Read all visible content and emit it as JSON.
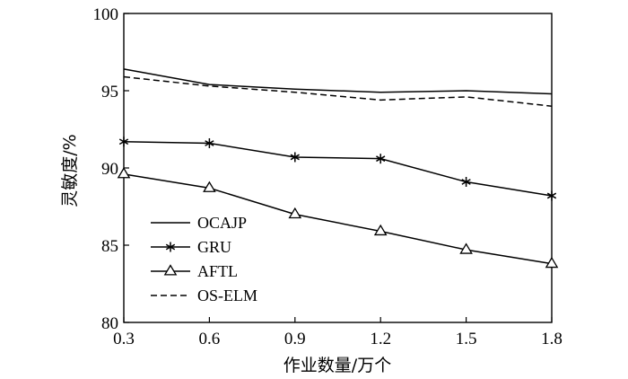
{
  "chart_data": {
    "type": "line",
    "title": "",
    "xlabel": "作业数量/万个",
    "ylabel": "灵敏度/%",
    "x": [
      0.3,
      0.6,
      0.9,
      1.2,
      1.5,
      1.8
    ],
    "xticks": [
      "0.3",
      "0.6",
      "0.9",
      "1.2",
      "1.5",
      "1.8"
    ],
    "yticks": [
      "80",
      "85",
      "90",
      "95",
      "100"
    ],
    "xlim": [
      0.3,
      1.8
    ],
    "ylim": [
      80,
      100
    ],
    "grid": false,
    "legend_position": "lower-left",
    "series": [
      {
        "name": "OCAJP",
        "values": [
          96.4,
          95.4,
          95.1,
          94.9,
          95.0,
          94.8
        ],
        "line": "solid",
        "marker": "none"
      },
      {
        "name": "GRU",
        "values": [
          91.7,
          91.6,
          90.7,
          90.6,
          89.1,
          88.2
        ],
        "line": "solid",
        "marker": "star"
      },
      {
        "name": "AFTL",
        "values": [
          89.6,
          88.7,
          87.0,
          85.9,
          84.7,
          83.8
        ],
        "line": "solid",
        "marker": "triangle"
      },
      {
        "name": "OS-ELM",
        "values": [
          95.9,
          95.3,
          94.9,
          94.4,
          94.6,
          94.0
        ],
        "line": "dashed",
        "marker": "none"
      }
    ]
  }
}
